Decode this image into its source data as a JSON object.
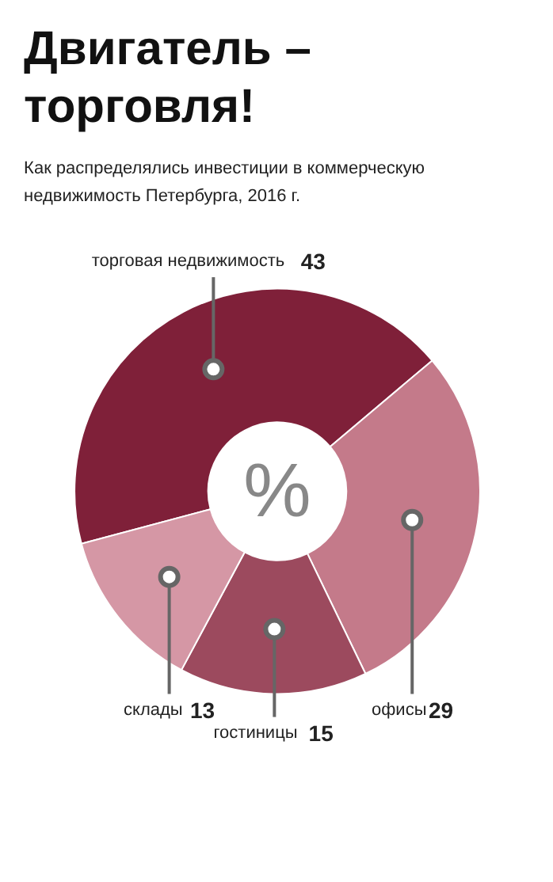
{
  "chart_data": {
    "type": "donut",
    "title": "Двигатель – торговля!",
    "subtitle": "Как распределялись инвестиции в коммерческую недвижимость Петербурга, 2016 г.",
    "categories": [
      "торговая недвижимость",
      "офисы",
      "гостиницы",
      "склады"
    ],
    "values": [
      43,
      29,
      15,
      13
    ],
    "colors": [
      "#7f2039",
      "#c47a8a",
      "#9c4a5e",
      "#d597a5"
    ],
    "data_labels": true,
    "annotations": [
      "%"
    ]
  }
}
